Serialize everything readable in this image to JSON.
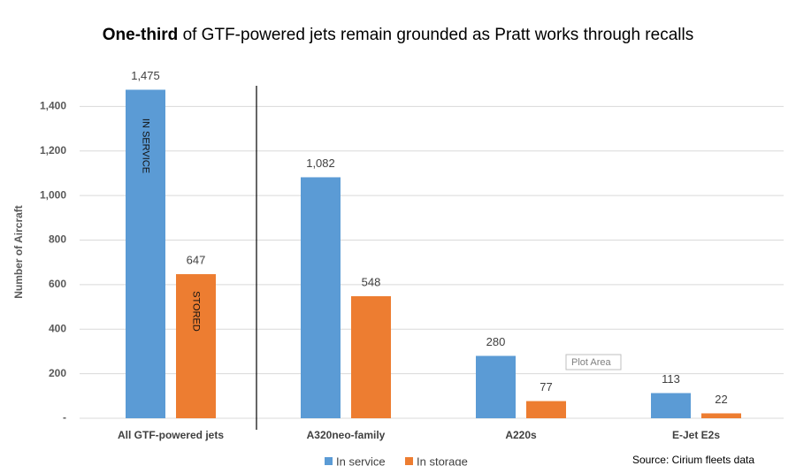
{
  "chart_data": {
    "type": "bar",
    "title": [
      "One-third",
      "of GTF-powered jets remain grounded as Pratt works through recalls"
    ],
    "y_label": "Number of Aircraft",
    "categories": [
      "All GTF-powered jets",
      "A320neo-family",
      "A220s",
      "E-Jet E2s"
    ],
    "series": [
      {
        "name": "In service",
        "color": "#5b9bd5",
        "values": [
          1475,
          1082,
          280,
          113
        ],
        "value_labels": [
          "1,475",
          "1,082",
          "280",
          "113"
        ]
      },
      {
        "name": "In storage",
        "color": "#ed7d31",
        "values": [
          647,
          548,
          77,
          22
        ],
        "value_labels": [
          "647",
          "548",
          "77",
          "22"
        ]
      }
    ],
    "annotations": [
      "IN SERVICE",
      "STORED"
    ],
    "tooltip": "Plot Area",
    "source": "Source: Cirium fleets data",
    "ylim": [
      0,
      1600
    ],
    "yticks": [
      {
        "value": 0,
        "label": "-"
      },
      200,
      400,
      600,
      800,
      {
        "value": 1000,
        "label": "1,000"
      },
      {
        "value": 1200,
        "label": "1,200"
      },
      {
        "value": 1400,
        "label": "1,400"
      }
    ],
    "grid": true,
    "legend": "bottom"
  }
}
